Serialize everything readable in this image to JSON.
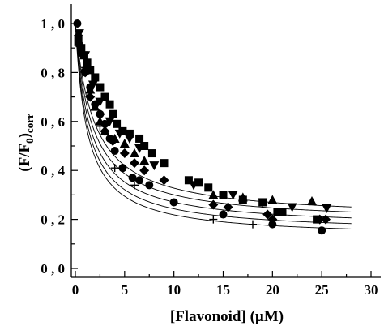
{
  "chart_data": {
    "type": "scatter",
    "xlabel": "[Flavonoid] (µM)",
    "ylabel_main": "(F/F",
    "ylabel_sub0": "0",
    "ylabel_mid": ")",
    "ylabel_sub": "corr",
    "xlim": [
      0,
      32
    ],
    "ylim": [
      0,
      1.1
    ],
    "xticks": [
      0,
      5,
      10,
      15,
      20,
      25,
      30
    ],
    "xtick_labels": [
      "0",
      "5",
      "10",
      "15",
      "20",
      "25",
      "30"
    ],
    "yticks": [
      0,
      0.2,
      0.4,
      0.6,
      0.8,
      1.0
    ],
    "ytick_labels": [
      "0 , 0",
      "0 , 2",
      "0 , 4",
      "0 , 6",
      "0 , 8",
      "1 , 0"
    ],
    "grid": false,
    "series": [
      {
        "marker": "square",
        "points": [
          [
            0.3,
            0.93
          ],
          [
            0.6,
            0.9
          ],
          [
            0.9,
            0.87
          ],
          [
            1.2,
            0.84
          ],
          [
            1.5,
            0.81
          ],
          [
            2.0,
            0.78
          ],
          [
            2.5,
            0.74
          ],
          [
            3.0,
            0.7
          ],
          [
            3.5,
            0.67
          ],
          [
            3.8,
            0.63
          ],
          [
            4.2,
            0.59
          ],
          [
            4.8,
            0.56
          ],
          [
            5.5,
            0.55
          ],
          [
            6.5,
            0.53
          ],
          [
            7.0,
            0.5
          ],
          [
            7.8,
            0.47
          ],
          [
            9.0,
            0.43
          ],
          [
            11.5,
            0.36
          ],
          [
            12.5,
            0.35
          ],
          [
            13.5,
            0.33
          ],
          [
            15.0,
            0.3
          ],
          [
            17.0,
            0.28
          ],
          [
            19.0,
            0.27
          ],
          [
            20.5,
            0.23
          ],
          [
            21.0,
            0.23
          ],
          [
            24.5,
            0.2
          ]
        ]
      },
      {
        "marker": "circle",
        "points": [
          [
            0.2,
            1.0
          ],
          [
            0.6,
            0.88
          ],
          [
            1.0,
            0.8
          ],
          [
            1.5,
            0.74
          ],
          [
            2.0,
            0.67
          ],
          [
            2.5,
            0.63
          ],
          [
            3.0,
            0.59
          ],
          [
            3.5,
            0.53
          ],
          [
            4.0,
            0.48
          ],
          [
            4.8,
            0.41
          ],
          [
            5.8,
            0.37
          ],
          [
            6.5,
            0.36
          ],
          [
            7.5,
            0.34
          ],
          [
            10.0,
            0.27
          ],
          [
            15.0,
            0.22
          ],
          [
            20.0,
            0.18
          ],
          [
            25.0,
            0.155
          ]
        ]
      },
      {
        "marker": "triangle-up",
        "points": [
          [
            0.5,
            0.92
          ],
          [
            1.0,
            0.82
          ],
          [
            1.5,
            0.73
          ],
          [
            2.0,
            0.66
          ],
          [
            2.5,
            0.6
          ],
          [
            3.0,
            0.56
          ],
          [
            4.0,
            0.53
          ],
          [
            5.0,
            0.51
          ],
          [
            6.0,
            0.47
          ],
          [
            7.0,
            0.44
          ],
          [
            14.0,
            0.3
          ],
          [
            17.0,
            0.29
          ],
          [
            20.0,
            0.28
          ],
          [
            24.0,
            0.275
          ]
        ]
      },
      {
        "marker": "triangle-down",
        "points": [
          [
            0.4,
            0.96
          ],
          [
            1.0,
            0.87
          ],
          [
            1.8,
            0.75
          ],
          [
            2.5,
            0.68
          ],
          [
            3.5,
            0.6
          ],
          [
            4.5,
            0.55
          ],
          [
            5.5,
            0.53
          ],
          [
            6.5,
            0.49
          ],
          [
            8.0,
            0.42
          ],
          [
            12.0,
            0.34
          ],
          [
            16.0,
            0.3
          ],
          [
            19.0,
            0.27
          ],
          [
            22.0,
            0.25
          ],
          [
            25.5,
            0.245
          ]
        ]
      },
      {
        "marker": "diamond",
        "points": [
          [
            0.3,
            0.95
          ],
          [
            1.0,
            0.8
          ],
          [
            1.5,
            0.7
          ],
          [
            2.5,
            0.63
          ],
          [
            3.0,
            0.56
          ],
          [
            3.8,
            0.52
          ],
          [
            5.0,
            0.47
          ],
          [
            6.0,
            0.43
          ],
          [
            7.0,
            0.4
          ],
          [
            9.0,
            0.36
          ],
          [
            14.0,
            0.26
          ],
          [
            15.5,
            0.25
          ],
          [
            19.5,
            0.22
          ],
          [
            20.0,
            0.2
          ],
          [
            24.8,
            0.2
          ],
          [
            25.4,
            0.2
          ]
        ]
      },
      {
        "marker": "plus",
        "points": [
          [
            0.3,
            0.91
          ],
          [
            1.0,
            0.82
          ],
          [
            1.5,
            0.7
          ],
          [
            2.5,
            0.58
          ],
          [
            4.0,
            0.41
          ],
          [
            6.0,
            0.34
          ],
          [
            14.0,
            0.2
          ],
          [
            18.0,
            0.18
          ]
        ]
      }
    ],
    "fit_curves": [
      {
        "a": 1.0,
        "b": 0.2,
        "c": 1.9
      },
      {
        "a": 1.0,
        "b": 0.185,
        "c": 1.65
      },
      {
        "a": 1.0,
        "b": 0.165,
        "c": 1.45
      },
      {
        "a": 1.0,
        "b": 0.145,
        "c": 1.3
      },
      {
        "a": 1.0,
        "b": 0.125,
        "c": 1.2
      }
    ],
    "fit_xmax": 28
  }
}
